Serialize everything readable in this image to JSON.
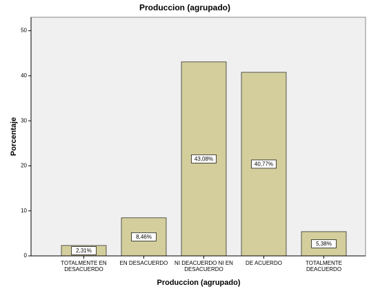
{
  "chart_data": {
    "type": "bar",
    "title": "Produccion (agrupado)",
    "x_label": "Produccion (agrupado)",
    "y_label": "Porcentaje",
    "categories": [
      "TOTALMENTE EN DESACUERDO",
      "EN DESACUERDO",
      "NI DEACUERDO NI EN DESACUERDO",
      "DE ACUERDO",
      "TOTALMENTE DEACUERDO"
    ],
    "values": [
      2.31,
      8.46,
      43.08,
      40.77,
      5.38
    ],
    "value_labels": [
      "2,31%",
      "8,46%",
      "43,08%",
      "40,77%",
      "5,38%"
    ],
    "color": "#d3ce9b",
    "ylim": [
      0,
      53
    ],
    "yticks": [
      0,
      10,
      20,
      30,
      40,
      50
    ],
    "grid": false
  }
}
